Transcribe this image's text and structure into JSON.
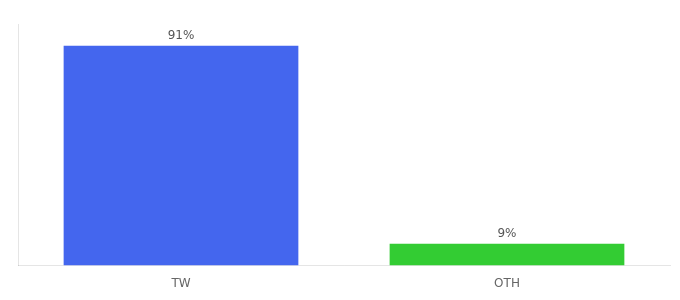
{
  "chart_data": {
    "type": "bar",
    "categories": [
      "TW",
      "OTH"
    ],
    "values": [
      91,
      9
    ],
    "value_labels": [
      "91%",
      "9%"
    ],
    "colors": [
      "#4466ee",
      "#33cc33"
    ],
    "ylim": [
      0,
      100
    ],
    "data_labels": true,
    "tick_labels": "x",
    "grid": false
  }
}
